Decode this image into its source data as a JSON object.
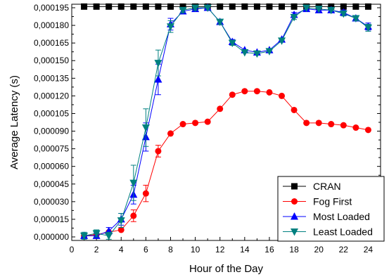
{
  "chart_data": {
    "type": "line",
    "title": "",
    "xlabel": "Hour of the Day",
    "ylabel": "Average Latency (s)",
    "xlim": [
      0,
      25
    ],
    "ylim": [
      -3e-06,
      0.000198
    ],
    "x_ticks": [
      0,
      1,
      2,
      3,
      4,
      5,
      6,
      7,
      8,
      9,
      10,
      11,
      12,
      13,
      14,
      15,
      16,
      17,
      18,
      19,
      20,
      21,
      22,
      23,
      24
    ],
    "x_tick_labels": [
      "0",
      "2",
      "4",
      "6",
      "8",
      "10",
      "12",
      "14",
      "16",
      "18",
      "20",
      "22",
      "24"
    ],
    "x_tick_label_values": [
      0,
      2,
      4,
      6,
      8,
      10,
      12,
      14,
      16,
      18,
      20,
      22,
      24
    ],
    "y_tick_values": [
      0,
      1.5e-05,
      3e-05,
      4.5e-05,
      6e-05,
      7.5e-05,
      9e-05,
      0.000105,
      0.00012,
      0.000135,
      0.00015,
      0.000165,
      0.00018,
      0.000195
    ],
    "y_tick_labels": [
      "0,000000",
      "0,000015",
      "0,000030",
      "0,000045",
      "0,000060",
      "0,000075",
      "0,000090",
      "0,000105",
      "0,000120",
      "0,000135",
      "0,000150",
      "0,000165",
      "0,000180",
      "0,000195"
    ],
    "grid": false,
    "legend_position": "bottom-right",
    "x": [
      1,
      2,
      3,
      4,
      5,
      6,
      7,
      8,
      9,
      10,
      11,
      12,
      13,
      14,
      15,
      16,
      17,
      18,
      19,
      20,
      21,
      22,
      23,
      24
    ],
    "series": [
      {
        "name": "CRAN",
        "marker": "square",
        "color": "#000000",
        "values": [
          0.000196,
          0.000196,
          0.000196,
          0.000196,
          0.000196,
          0.000196,
          0.000196,
          0.000196,
          0.000196,
          0.000196,
          0.000196,
          0.000196,
          0.000196,
          0.000196,
          0.000196,
          0.000196,
          0.000196,
          0.000196,
          0.000196,
          0.000196,
          0.000196,
          0.000196,
          0.000196,
          0.000196
        ],
        "errors": []
      },
      {
        "name": "Fog First",
        "marker": "circle",
        "color": "#ff0000",
        "values": [
          1e-06,
          2e-06,
          4e-06,
          6e-06,
          1.8e-05,
          3.7e-05,
          7.3e-05,
          8.8e-05,
          9.6e-05,
          9.7e-05,
          9.8e-05,
          0.000109,
          0.000121,
          0.000124,
          0.000124,
          0.000123,
          0.00012,
          0.000108,
          9.7e-05,
          9.7e-05,
          9.6e-05,
          9.5e-05,
          9.3e-05,
          9.1e-05
        ],
        "errors": [
          0,
          0,
          0,
          0,
          5e-06,
          7e-06,
          5e-06,
          0,
          0,
          0,
          0,
          0,
          0,
          0,
          0,
          0,
          0,
          0,
          0,
          0,
          0,
          0,
          0,
          0
        ]
      },
      {
        "name": "Most Loaded",
        "marker": "triangle-up",
        "color": "#0000ff",
        "values": [
          1e-06,
          1e-06,
          5e-06,
          1.5e-05,
          3.6e-05,
          8.5e-05,
          0.000134,
          0.000181,
          0.000192,
          0.000194,
          0.000195,
          0.000183,
          0.000166,
          0.000159,
          0.000157,
          0.000159,
          0.000168,
          0.000189,
          0.000194,
          0.000193,
          0.000193,
          0.000191,
          0.000186,
          0.000179
        ],
        "errors": [
          0,
          2e-06,
          3e-06,
          5e-06,
          8e-06,
          1.2e-05,
          1.3e-05,
          5e-06,
          2e-06,
          2e-06,
          0,
          2e-06,
          2e-06,
          0,
          0,
          0,
          0,
          2e-06,
          0,
          0,
          0,
          2e-06,
          2e-06,
          3e-06
        ]
      },
      {
        "name": "Least Loaded",
        "marker": "triangle-down",
        "color": "#008080",
        "values": [
          1e-06,
          3e-06,
          1e-06,
          1.4e-05,
          4.6e-05,
          9.3e-05,
          0.000148,
          0.000179,
          0.000193,
          0.000195,
          0.000195,
          0.000183,
          0.000165,
          0.000157,
          0.000156,
          0.000158,
          0.000167,
          0.000187,
          0.000195,
          0.000194,
          0.000193,
          0.00019,
          0.000186,
          0.000178
        ],
        "errors": [
          3e-06,
          3e-06,
          3e-06,
          6e-06,
          1.5e-05,
          1.6e-05,
          1.1e-05,
          5e-06,
          2e-06,
          2e-06,
          0,
          2e-06,
          2e-06,
          0,
          0,
          0,
          0,
          2e-06,
          0,
          0,
          0,
          2e-06,
          2e-06,
          3e-06
        ]
      }
    ]
  }
}
